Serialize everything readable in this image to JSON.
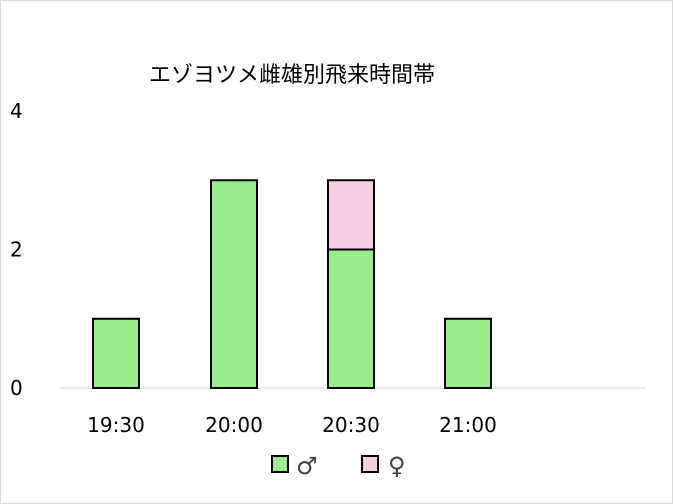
{
  "chart_data": {
    "type": "bar",
    "stacked": true,
    "title": "エゾヨツメ雌雄別飛来時間帯",
    "categories": [
      "19:30",
      "20:00",
      "20:30",
      "21:00"
    ],
    "series": [
      {
        "name": "♂",
        "values": [
          1,
          3,
          2,
          1
        ],
        "color": "#98ec8e"
      },
      {
        "name": "♀",
        "values": [
          0,
          0,
          1,
          0
        ],
        "color": "#f7cde6"
      }
    ],
    "ylim": [
      0,
      4
    ],
    "yticks": [
      0,
      2,
      4
    ],
    "grid": false,
    "legend_position": "bottom"
  }
}
